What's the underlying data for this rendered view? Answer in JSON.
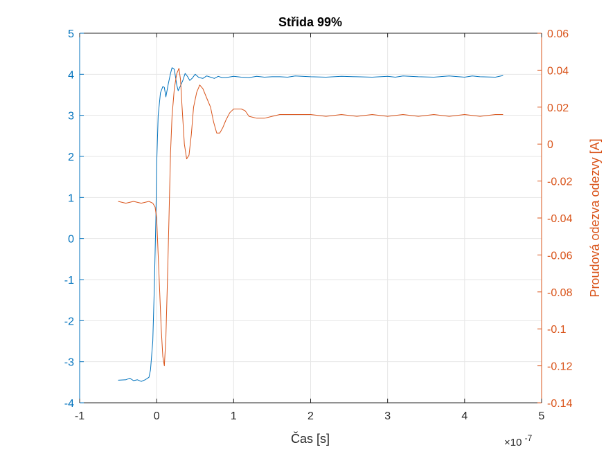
{
  "chart_data": {
    "type": "line",
    "title": "Střida 99%",
    "xlabel": "Čas [s]",
    "ylabel_left": "",
    "ylabel_right": "Proudová odezva odezvy [A]",
    "x_exponent_label": "×10",
    "x_exponent_power": "-7",
    "xlim": [
      -1,
      5
    ],
    "ylim_left": [
      -4,
      5
    ],
    "ylim_right": [
      -0.14,
      0.06
    ],
    "x_ticks": [
      -1,
      0,
      1,
      2,
      3,
      4,
      5
    ],
    "x_tick_labels": [
      "-1",
      "0",
      "1",
      "2",
      "3",
      "4",
      "5"
    ],
    "y_left_ticks": [
      -4,
      -3,
      -2,
      -1,
      0,
      1,
      2,
      3,
      4,
      5
    ],
    "y_left_tick_labels": [
      "-4",
      "-3",
      "-2",
      "-1",
      "0",
      "1",
      "2",
      "3",
      "4",
      "5"
    ],
    "y_right_ticks": [
      -0.14,
      -0.12,
      -0.1,
      -0.08,
      -0.06,
      -0.04,
      -0.02,
      0,
      0.02,
      0.04,
      0.06
    ],
    "y_right_tick_labels": [
      "-0.14",
      "-0.12",
      "-0.1",
      "-0.08",
      "-0.06",
      "-0.04",
      "-0.02",
      "0",
      "0.02",
      "0.04",
      "0.06"
    ],
    "grid": true,
    "colors": {
      "left": "#0072BD",
      "right": "#D95319",
      "grid": "#e6e6e6",
      "axis": "#262626"
    },
    "series": [
      {
        "axis": "left",
        "x": [
          -0.5,
          -0.4,
          -0.35,
          -0.3,
          -0.25,
          -0.2,
          -0.15,
          -0.1,
          -0.08,
          -0.05,
          -0.03,
          -0.01,
          0.0,
          0.02,
          0.05,
          0.08,
          0.1,
          0.12,
          0.15,
          0.18,
          0.2,
          0.23,
          0.26,
          0.28,
          0.31,
          0.34,
          0.37,
          0.4,
          0.43,
          0.46,
          0.5,
          0.55,
          0.6,
          0.65,
          0.7,
          0.75,
          0.8,
          0.85,
          0.9,
          1.0,
          1.1,
          1.2,
          1.3,
          1.4,
          1.5,
          1.6,
          1.7,
          1.8,
          2.0,
          2.2,
          2.4,
          2.6,
          2.8,
          3.0,
          3.1,
          3.2,
          3.4,
          3.6,
          3.8,
          4.0,
          4.1,
          4.2,
          4.4,
          4.5
        ],
        "y": [
          -3.45,
          -3.44,
          -3.4,
          -3.46,
          -3.44,
          -3.48,
          -3.44,
          -3.38,
          -3.2,
          -2.5,
          -1.2,
          0.5,
          1.8,
          3.0,
          3.55,
          3.7,
          3.68,
          3.45,
          3.75,
          4.02,
          4.16,
          4.12,
          3.75,
          3.6,
          3.72,
          3.85,
          4.02,
          3.95,
          3.85,
          3.9,
          4.0,
          3.92,
          3.9,
          3.96,
          3.93,
          3.9,
          3.95,
          3.92,
          3.92,
          3.95,
          3.93,
          3.92,
          3.95,
          3.93,
          3.94,
          3.94,
          3.93,
          3.96,
          3.94,
          3.93,
          3.95,
          3.94,
          3.93,
          3.95,
          3.93,
          3.96,
          3.94,
          3.93,
          3.96,
          3.93,
          3.96,
          3.94,
          3.93,
          3.97
        ]
      },
      {
        "axis": "right",
        "x": [
          -0.5,
          -0.4,
          -0.3,
          -0.2,
          -0.1,
          -0.05,
          -0.02,
          0.0,
          0.02,
          0.04,
          0.06,
          0.08,
          0.1,
          0.12,
          0.14,
          0.16,
          0.18,
          0.2,
          0.23,
          0.26,
          0.29,
          0.31,
          0.33,
          0.36,
          0.39,
          0.42,
          0.45,
          0.48,
          0.52,
          0.56,
          0.6,
          0.65,
          0.7,
          0.74,
          0.78,
          0.82,
          0.86,
          0.9,
          0.95,
          1.0,
          1.05,
          1.1,
          1.15,
          1.2,
          1.3,
          1.4,
          1.5,
          1.6,
          1.8,
          2.0,
          2.2,
          2.4,
          2.6,
          2.8,
          3.0,
          3.2,
          3.4,
          3.6,
          3.8,
          4.0,
          4.2,
          4.4,
          4.5
        ],
        "y": [
          -0.031,
          -0.032,
          -0.031,
          -0.032,
          -0.031,
          -0.032,
          -0.034,
          -0.04,
          -0.06,
          -0.08,
          -0.1,
          -0.115,
          -0.12,
          -0.105,
          -0.075,
          -0.04,
          -0.005,
          0.015,
          0.03,
          0.038,
          0.041,
          0.035,
          0.02,
          0.0,
          -0.008,
          -0.006,
          0.005,
          0.02,
          0.028,
          0.032,
          0.03,
          0.025,
          0.02,
          0.012,
          0.006,
          0.006,
          0.009,
          0.013,
          0.017,
          0.019,
          0.019,
          0.019,
          0.018,
          0.015,
          0.014,
          0.014,
          0.015,
          0.016,
          0.016,
          0.016,
          0.015,
          0.016,
          0.015,
          0.016,
          0.015,
          0.016,
          0.015,
          0.016,
          0.015,
          0.016,
          0.015,
          0.016,
          0.016
        ]
      }
    ]
  }
}
